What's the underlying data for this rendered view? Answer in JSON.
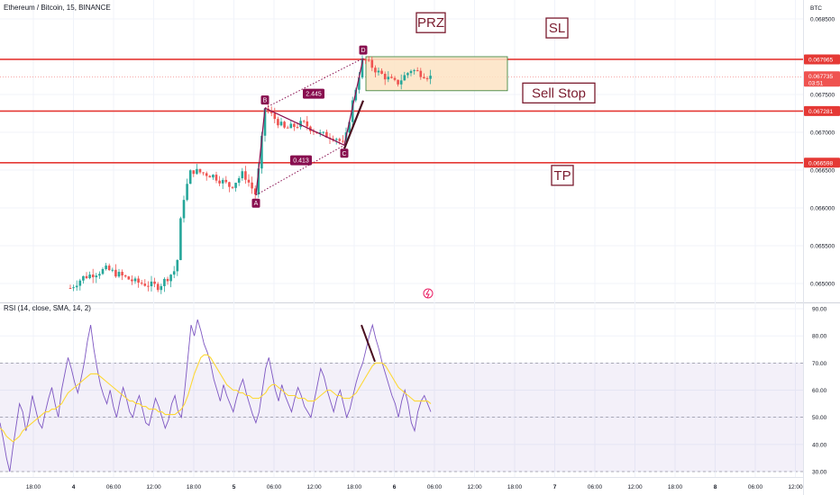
{
  "header": {
    "title": "Ethereum / Bitcoin, 15, BINANCE",
    "currency": "BTC"
  },
  "chart_data": [
    {
      "type": "candlestick",
      "title": "Ethereum / Bitcoin, 15, BINANCE",
      "ylim": [
        0.06475,
        0.06875
      ],
      "y_ticks": [
        "0.068500",
        "0.067500",
        "0.067000",
        "0.066500",
        "0.066000",
        "0.065500",
        "0.065000"
      ],
      "x_ticks": [
        "18:00",
        "4",
        "06:00",
        "12:00",
        "18:00",
        "5",
        "06:00",
        "12:00",
        "18:00",
        "6",
        "06:00",
        "12:00",
        "18:00",
        "7",
        "06:00",
        "12:00",
        "18:00",
        "8",
        "06:00",
        "12:00"
      ],
      "price_lines": [
        {
          "value": 0.067965,
          "label": "0.067965"
        },
        {
          "value": 0.067281,
          "label": "0.067281"
        },
        {
          "value": 0.066598,
          "label": "0.066598"
        }
      ],
      "current_price": {
        "value": 0.067735,
        "label": "0.067735",
        "countdown": "03:51"
      },
      "pattern_points": [
        {
          "name": "A",
          "value": 0.06617
        },
        {
          "name": "B",
          "value": 0.06732
        },
        {
          "name": "C",
          "value": 0.06683
        },
        {
          "name": "D",
          "value": 0.06798
        }
      ],
      "ratios": [
        "2.445",
        "0.413"
      ],
      "annotations": [
        "PRZ",
        "SL",
        "Sell Stop",
        "TP"
      ],
      "prz_zone": [
        0.06755,
        0.068
      ],
      "colors": {
        "up": "#26a69a",
        "down": "#ef5350",
        "level": "#e53935",
        "pattern": "#880e4f",
        "prz_fill": "#fde3c3"
      },
      "grid": true
    },
    {
      "type": "line",
      "title": "RSI (14, close, SMA, 14, 2)",
      "ylim": [
        28,
        92
      ],
      "y_ticks": [
        "90.00",
        "80.00",
        "70.00",
        "60.00",
        "50.00",
        "40.00",
        "30.00"
      ],
      "band": [
        30,
        70
      ],
      "series": [
        {
          "values": [
            48,
            42,
            35,
            30,
            39,
            47,
            55,
            52,
            45,
            50,
            58,
            53,
            48,
            46,
            52,
            57,
            61,
            55,
            50,
            60,
            66,
            72,
            68,
            63,
            59,
            64,
            70,
            78,
            84,
            75,
            68,
            62,
            58,
            55,
            60,
            54,
            50,
            56,
            61,
            57,
            52,
            50,
            55,
            58,
            53,
            48,
            47,
            52,
            57,
            54,
            50,
            46,
            49,
            55,
            58,
            52,
            50,
            60,
            72,
            84,
            80,
            86,
            82,
            77,
            74,
            70,
            64,
            60,
            56,
            62,
            58,
            55,
            52,
            57,
            61,
            64,
            59,
            55,
            51,
            48,
            52,
            60,
            68,
            72,
            66,
            60,
            56,
            62,
            58,
            55,
            52,
            57,
            61,
            58,
            54,
            52,
            50,
            56,
            62,
            68,
            65,
            60,
            56,
            52,
            57,
            60,
            55,
            50,
            53,
            58,
            63,
            67,
            70,
            75,
            80,
            84,
            79,
            75,
            70,
            66,
            62,
            58,
            55,
            50,
            56,
            60,
            55,
            48,
            45,
            52,
            56,
            58,
            55,
            52
          ]
        },
        {
          "values": [
            46,
            45,
            43,
            42,
            41,
            42,
            43,
            45,
            46,
            47,
            48,
            49,
            50,
            51,
            52,
            52,
            53,
            53,
            54,
            55,
            57,
            59,
            60,
            61,
            62,
            63,
            64,
            65,
            66,
            66,
            66,
            65,
            64,
            63,
            62,
            61,
            60,
            59,
            58,
            57,
            56,
            56,
            55,
            55,
            54,
            54,
            53,
            53,
            53,
            52,
            52,
            51,
            51,
            51,
            51,
            52,
            53,
            55,
            58,
            62,
            66,
            69,
            72,
            73,
            73,
            72,
            70,
            68,
            66,
            64,
            62,
            61,
            60,
            60,
            59,
            59,
            58,
            58,
            57,
            57,
            57,
            58,
            59,
            61,
            62,
            62,
            61,
            60,
            59,
            58,
            58,
            58,
            57,
            57,
            57,
            56,
            56,
            56,
            57,
            58,
            59,
            60,
            60,
            59,
            58,
            58,
            57,
            57,
            57,
            58,
            59,
            61,
            63,
            65,
            67,
            69,
            70,
            70,
            70,
            69,
            67,
            65,
            63,
            61,
            60,
            59,
            58,
            57,
            56,
            56,
            56,
            56,
            56,
            55
          ]
        }
      ],
      "grid": true
    }
  ]
}
